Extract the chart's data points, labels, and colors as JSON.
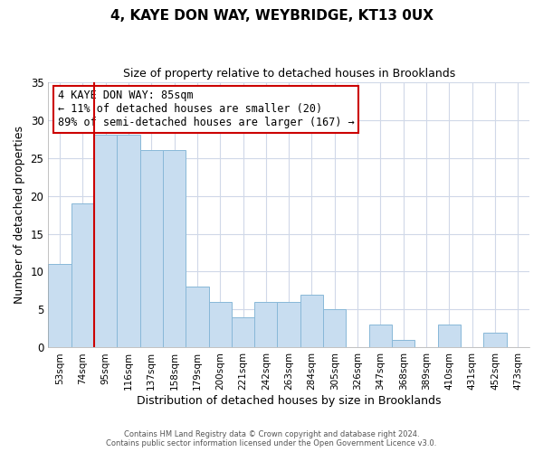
{
  "title": "4, KAYE DON WAY, WEYBRIDGE, KT13 0UX",
  "subtitle": "Size of property relative to detached houses in Brooklands",
  "xlabel": "Distribution of detached houses by size in Brooklands",
  "ylabel": "Number of detached properties",
  "categories": [
    "53sqm",
    "74sqm",
    "95sqm",
    "116sqm",
    "137sqm",
    "158sqm",
    "179sqm",
    "200sqm",
    "221sqm",
    "242sqm",
    "263sqm",
    "284sqm",
    "305sqm",
    "326sqm",
    "347sqm",
    "368sqm",
    "389sqm",
    "410sqm",
    "431sqm",
    "452sqm",
    "473sqm"
  ],
  "values": [
    11,
    19,
    28,
    28,
    26,
    26,
    8,
    6,
    4,
    6,
    6,
    7,
    5,
    0,
    3,
    1,
    0,
    3,
    0,
    2,
    0
  ],
  "bar_color": "#c8ddf0",
  "bar_edge_color": "#88b8d8",
  "reference_line_color": "#cc0000",
  "annotation_line1": "4 KAYE DON WAY: 85sqm",
  "annotation_line2": "← 11% of detached houses are smaller (20)",
  "annotation_line3": "89% of semi-detached houses are larger (167) →",
  "annotation_box_color": "#ffffff",
  "annotation_box_edge_color": "#cc0000",
  "ylim": [
    0,
    35
  ],
  "yticks": [
    0,
    5,
    10,
    15,
    20,
    25,
    30,
    35
  ],
  "footer1": "Contains HM Land Registry data © Crown copyright and database right 2024.",
  "footer2": "Contains public sector information licensed under the Open Government Licence v3.0.",
  "background_color": "#ffffff",
  "grid_color": "#d0d8e8"
}
